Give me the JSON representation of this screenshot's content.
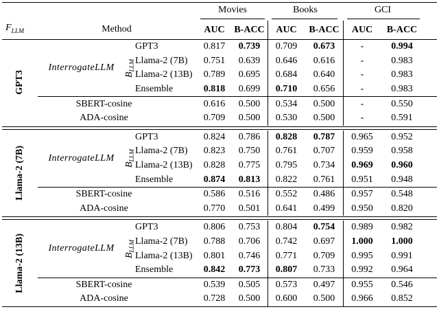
{
  "header": {
    "f_llm": {
      "base": "F",
      "sub": "LLM"
    },
    "method_label": "Method",
    "col_groups": [
      {
        "label": "Movies"
      },
      {
        "label": "Books"
      },
      {
        "label": "GCI"
      }
    ],
    "subheaders": {
      "auc": "AUC",
      "bacc": "B-ACC"
    }
  },
  "interrogate_label": "InterrogateLLM",
  "b_llm": {
    "base": "B",
    "sub": "LLM"
  },
  "groups": [
    {
      "model": "GPT3",
      "rows": [
        {
          "method": "GPT3",
          "values": [
            "0.817",
            "0.739",
            "0.709",
            "0.673",
            "-",
            "0.994"
          ]
        },
        {
          "method": "Llama-2 (7B)",
          "values": [
            "0.751",
            "0.639",
            "0.646",
            "0.616",
            "-",
            "0.983"
          ]
        },
        {
          "method": "Llama-2 (13B)",
          "values": [
            "0.789",
            "0.695",
            "0.684",
            "0.640",
            "-",
            "0.983"
          ]
        },
        {
          "method": "Ensemble",
          "values": [
            "0.818",
            "0.699",
            "0.710",
            "0.656",
            "-",
            "0.983"
          ]
        }
      ],
      "baselines": [
        {
          "method": "SBERT-cosine",
          "values": [
            "0.616",
            "0.500",
            "0.534",
            "0.500",
            "-",
            "0.550"
          ]
        },
        {
          "method": "ADA-cosine",
          "values": [
            "0.709",
            "0.500",
            "0.530",
            "0.500",
            "-",
            "0.591"
          ]
        }
      ]
    },
    {
      "model": "Llama-2 (7B)",
      "rows": [
        {
          "method": "GPT3",
          "values": [
            "0.824",
            "0.786",
            "0.828",
            "0.787",
            "0.965",
            "0.952"
          ]
        },
        {
          "method": "Llama-2 (7B)",
          "values": [
            "0.823",
            "0.750",
            "0.761",
            "0.707",
            "0.959",
            "0.958"
          ]
        },
        {
          "method": "Llama-2 (13B)",
          "values": [
            "0.828",
            "0.775",
            "0.795",
            "0.734",
            "0.969",
            "0.960"
          ]
        },
        {
          "method": "Ensemble",
          "values": [
            "0.874",
            "0.813",
            "0.822",
            "0.761",
            "0.951",
            "0.948"
          ]
        }
      ],
      "baselines": [
        {
          "method": "SBERT-cosine",
          "values": [
            "0.586",
            "0.516",
            "0.552",
            "0.486",
            "0.957",
            "0.548"
          ]
        },
        {
          "method": "ADA-cosine",
          "values": [
            "0.770",
            "0.501",
            "0.641",
            "0.499",
            "0.950",
            "0.820"
          ]
        }
      ]
    },
    {
      "model": "Llama-2 (13B)",
      "rows": [
        {
          "method": "GPT3",
          "values": [
            "0.806",
            "0.753",
            "0.804",
            "0.754",
            "0.989",
            "0.982"
          ]
        },
        {
          "method": "Llama-2 (7B)",
          "values": [
            "0.788",
            "0.706",
            "0.742",
            "0.697",
            "1.000",
            "1.000"
          ]
        },
        {
          "method": "Llama-2 (13B)",
          "values": [
            "0.801",
            "0.746",
            "0.771",
            "0.709",
            "0.995",
            "0.991"
          ]
        },
        {
          "method": "Ensemble",
          "values": [
            "0.842",
            "0.773",
            "0.807",
            "0.733",
            "0.992",
            "0.964"
          ]
        }
      ],
      "baselines": [
        {
          "method": "SBERT-cosine",
          "values": [
            "0.539",
            "0.505",
            "0.573",
            "0.497",
            "0.955",
            "0.546"
          ]
        },
        {
          "method": "ADA-cosine",
          "values": [
            "0.728",
            "0.500",
            "0.600",
            "0.500",
            "0.966",
            "0.852"
          ]
        }
      ]
    }
  ]
}
